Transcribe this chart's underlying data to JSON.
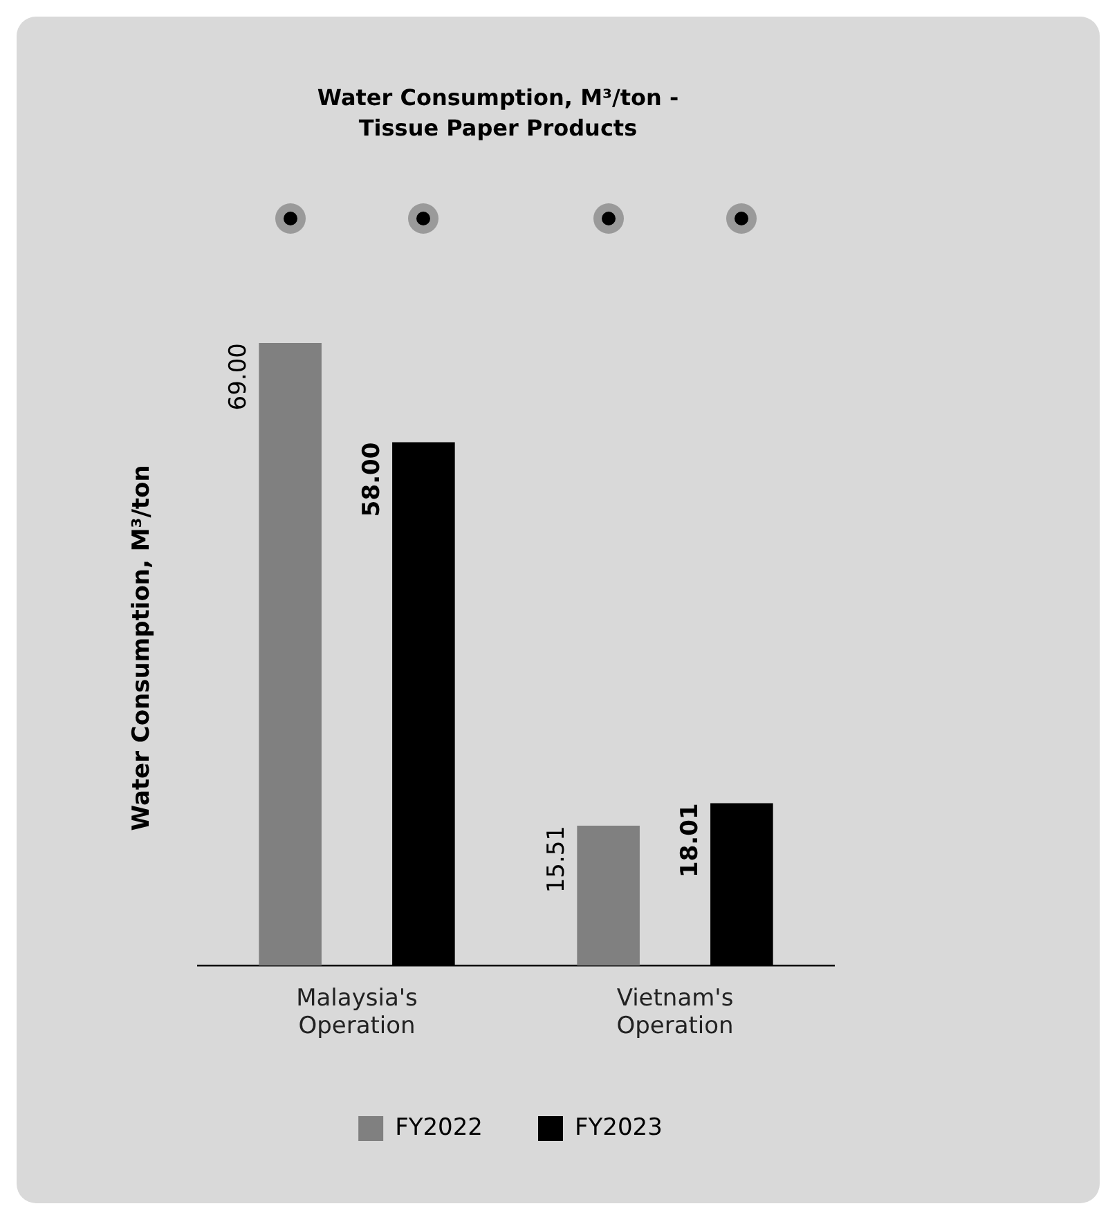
{
  "chart_data": {
    "type": "bar",
    "title": "Water Consumption, M³/ton - Tissue Paper Products",
    "ylabel": "Water Consumption, M³/ton",
    "categories": [
      "Malaysia's Operation",
      "Vietnam's Operation"
    ],
    "series": [
      {
        "name": "FY2022",
        "color": "#808080",
        "values": [
          69.0,
          15.51
        ],
        "value_labels": [
          "69.00",
          "15.51"
        ]
      },
      {
        "name": "FY2023",
        "color": "#000000",
        "values": [
          58.0,
          18.01
        ],
        "value_labels": [
          "58.00",
          "18.01"
        ]
      }
    ],
    "relative": false,
    "legend": "bottom",
    "grid": false
  }
}
